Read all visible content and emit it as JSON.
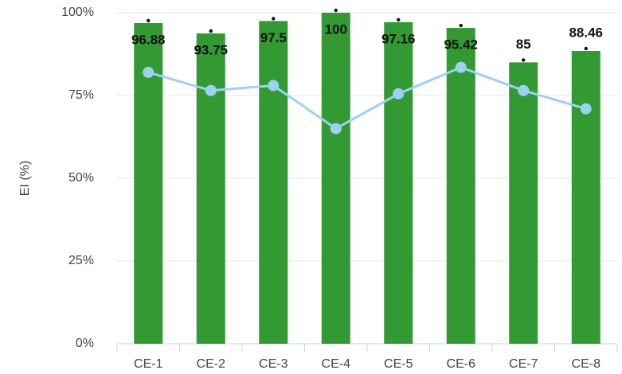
{
  "chart_data": {
    "type": "bar",
    "y_label": "EI (%)",
    "categories": [
      "CE-1",
      "CE-2",
      "CE-3",
      "CE-4",
      "CE-5",
      "CE-6",
      "CE-7",
      "CE-8"
    ],
    "series": [
      {
        "type": "bar",
        "color": "#339933",
        "values": [
          96.88,
          93.75,
          97.5,
          100,
          97.16,
          95.42,
          85,
          88.46
        ]
      },
      {
        "type": "line",
        "color": "#9dd1f2",
        "values": [
          82,
          76.5,
          78,
          65,
          75.5,
          83.5,
          76.5,
          71
        ]
      }
    ],
    "ylim": [
      0,
      100
    ],
    "yticks": [
      {
        "value": 0,
        "label": "0%"
      },
      {
        "value": 25,
        "label": "25%"
      },
      {
        "value": 50,
        "label": "50%"
      },
      {
        "value": 75,
        "label": "75%"
      },
      {
        "value": 100,
        "label": "100%"
      }
    ],
    "grid": true
  }
}
